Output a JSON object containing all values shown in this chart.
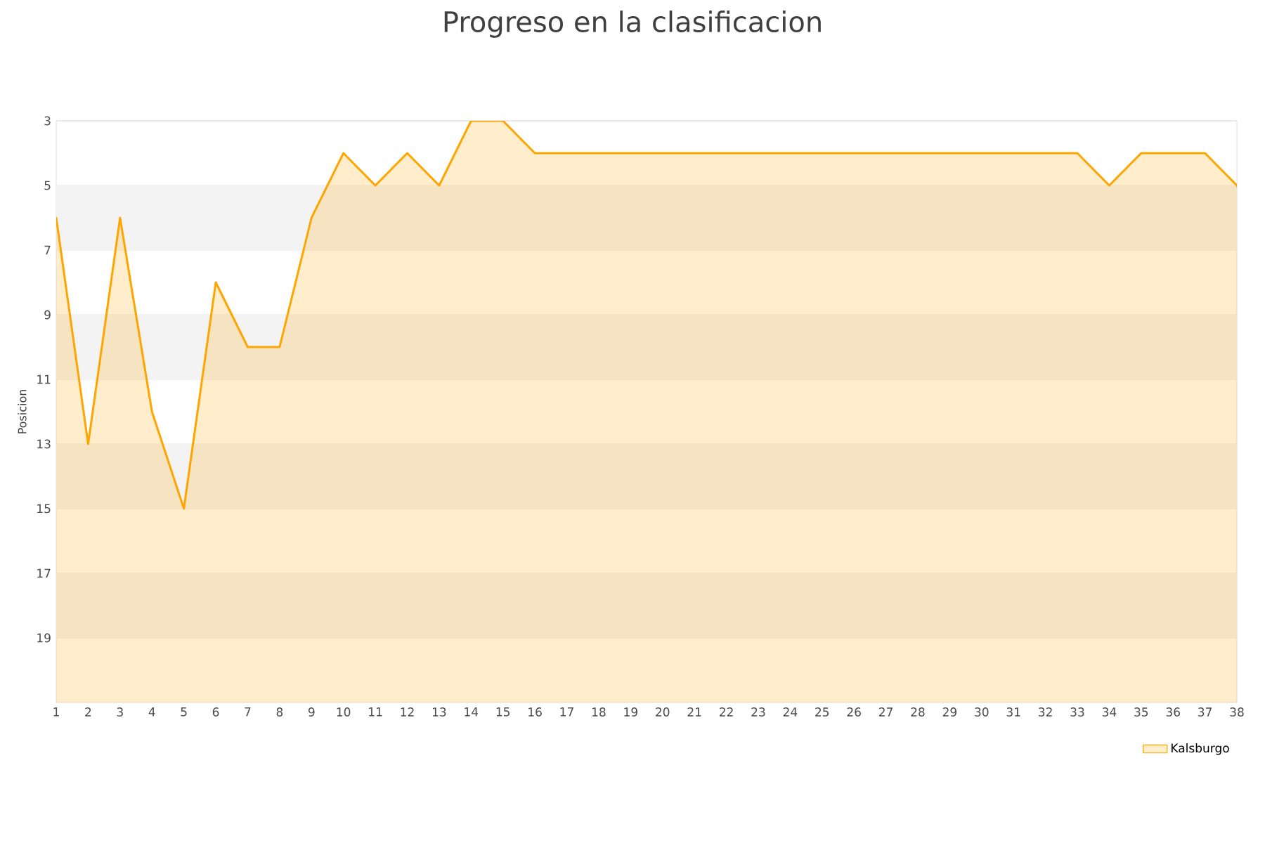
{
  "chart_data": {
    "type": "area",
    "title": "Progreso en la clasificacion",
    "ylabel": "Posicion",
    "x": [
      1,
      2,
      3,
      4,
      5,
      6,
      7,
      8,
      9,
      10,
      11,
      12,
      13,
      14,
      15,
      16,
      17,
      18,
      19,
      20,
      21,
      22,
      23,
      24,
      25,
      26,
      27,
      28,
      29,
      30,
      31,
      32,
      33,
      34,
      35,
      36,
      37,
      38
    ],
    "series": [
      {
        "name": "Kalsburgo",
        "color": "#ffa500",
        "values": [
          6,
          13,
          6,
          12,
          15,
          8,
          10,
          10,
          6,
          4,
          5,
          4,
          5,
          3,
          3,
          4,
          4,
          4,
          4,
          4,
          4,
          4,
          4,
          4,
          4,
          4,
          4,
          4,
          4,
          4,
          4,
          4,
          4,
          5,
          4,
          4,
          4,
          5
        ]
      }
    ],
    "xlim": [
      1,
      38
    ],
    "xticks": [
      1,
      2,
      3,
      4,
      5,
      6,
      7,
      8,
      9,
      10,
      11,
      12,
      13,
      14,
      15,
      16,
      17,
      18,
      19,
      20,
      21,
      22,
      23,
      24,
      25,
      26,
      27,
      28,
      29,
      30,
      31,
      32,
      33,
      34,
      35,
      36,
      37,
      38
    ],
    "ylim": [
      21,
      3
    ],
    "yticks": [
      3,
      5,
      7,
      9,
      11,
      13,
      15,
      17,
      19
    ],
    "bands": [
      {
        "axis": "y",
        "from": 5,
        "to": 7,
        "color": "#f3f3f3"
      },
      {
        "axis": "y",
        "from": 9,
        "to": 11,
        "color": "#f3f3f3"
      },
      {
        "axis": "y",
        "from": 13,
        "to": 15,
        "color": "#f3f3f3"
      },
      {
        "axis": "y",
        "from": 17,
        "to": 19,
        "color": "#f3f3f3"
      }
    ],
    "grid": "y",
    "legend": "bottom right",
    "marker": "none",
    "line_style": "solid"
  }
}
